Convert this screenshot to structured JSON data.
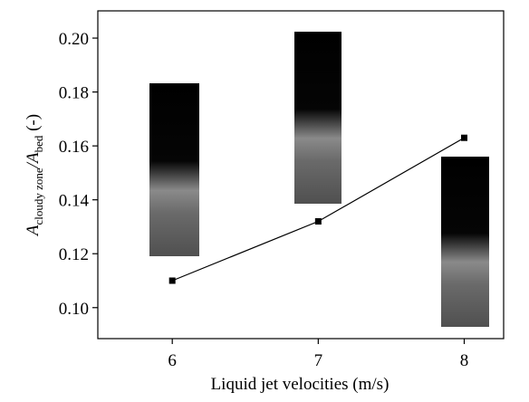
{
  "chart_data": {
    "type": "line",
    "x_label": "Liquid jet velocities (m/s)",
    "y_label": [
      "A",
      "cloudy zone",
      "/A",
      "bed",
      " (-)"
    ],
    "x": [
      6,
      7,
      8
    ],
    "series": [
      {
        "color": "#000000",
        "values": [
          0.11,
          0.132,
          0.163
        ]
      }
    ],
    "xlim": [
      5.49,
      8.27
    ],
    "xticks": [
      6,
      7,
      8
    ],
    "ylim": [
      0.0885,
      0.2101
    ],
    "yticks": [
      {
        "value": 0.1,
        "label": "0.10"
      },
      0.12,
      0.14,
      0.16,
      0.18,
      {
        "value": 0.2,
        "label": "0.20"
      }
    ]
  }
}
